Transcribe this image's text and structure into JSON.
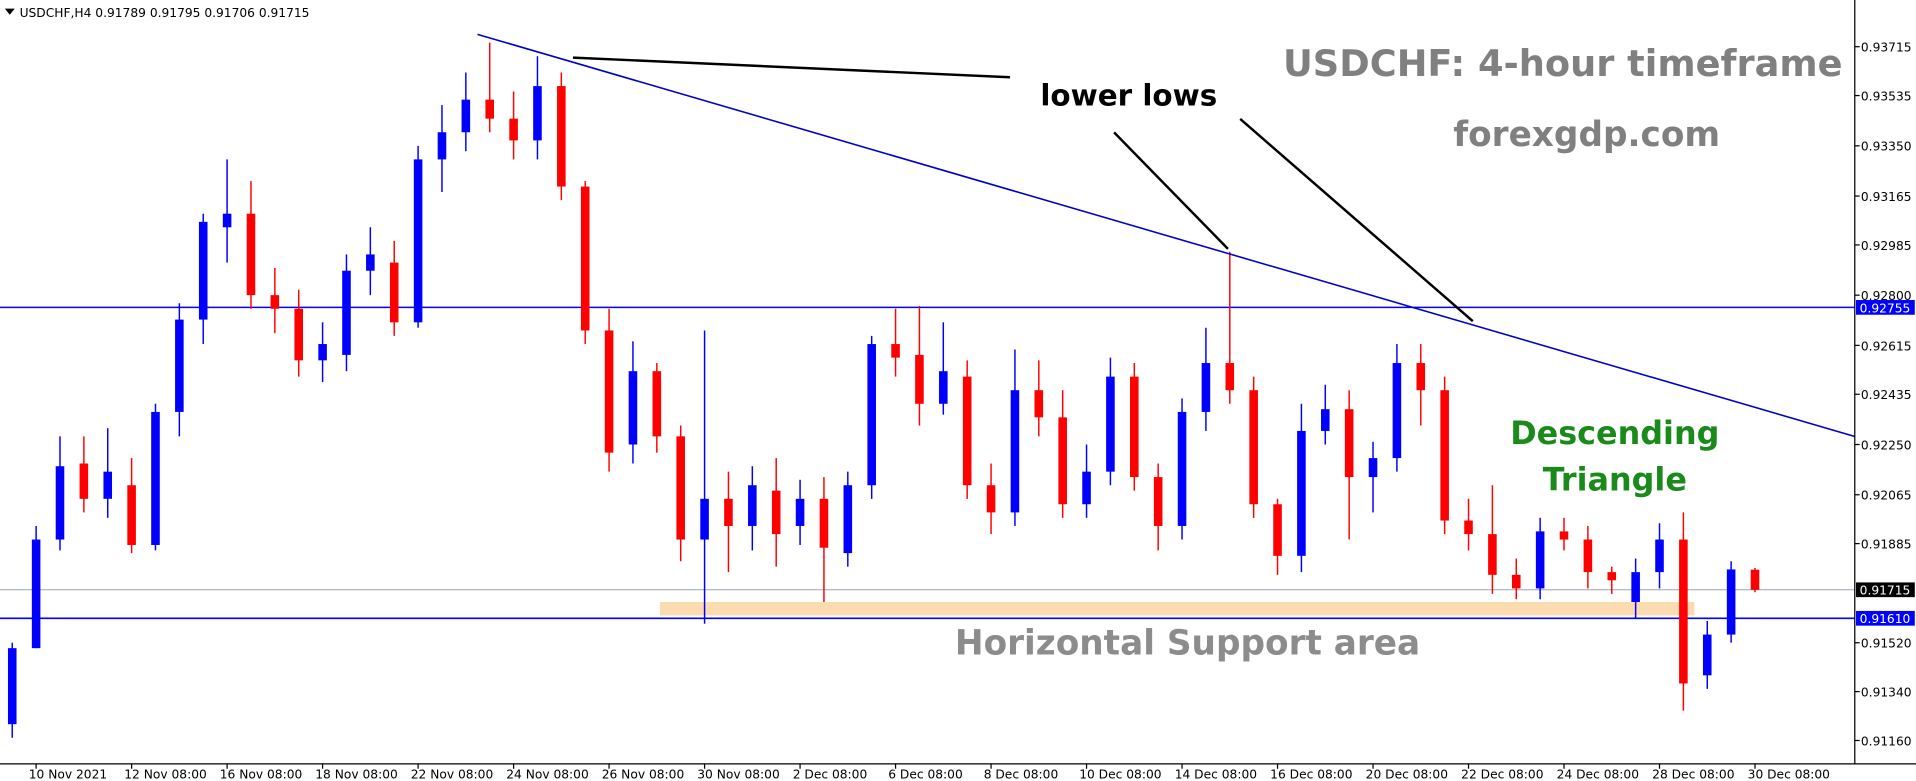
{
  "header": "USDCHF,H4  0.91789 0.91795 0.91706 0.91715",
  "chart_data": {
    "type": "candlestick",
    "up_color": "#0000ff",
    "down_color": "#ff0000",
    "categories": [
      null,
      "10 Nov 2021",
      null,
      null,
      null,
      "12 Nov 08:00",
      null,
      null,
      null,
      "16 Nov 08:00",
      null,
      null,
      null,
      "18 Nov 08:00",
      null,
      null,
      null,
      "22 Nov 08:00",
      null,
      null,
      null,
      "24 Nov 08:00",
      null,
      null,
      null,
      "26 Nov 08:00",
      null,
      null,
      null,
      "30 Nov 08:00",
      null,
      null,
      null,
      "2 Dec 08:00",
      null,
      null,
      null,
      "6 Dec 08:00",
      null,
      null,
      null,
      "8 Dec 08:00",
      null,
      null,
      null,
      "10 Dec 08:00",
      null,
      null,
      null,
      "14 Dec 08:00",
      null,
      null,
      null,
      "16 Dec 08:00",
      null,
      null,
      null,
      "20 Dec 08:00",
      null,
      null,
      null,
      "22 Dec 08:00",
      null,
      null,
      null,
      "24 Dec 08:00",
      null,
      null,
      null,
      "28 Dec 08:00",
      null,
      null,
      null,
      "30 Dec 08:00"
    ],
    "open": [
      0.9122,
      0.915,
      0.919,
      0.9218,
      0.9205,
      0.921,
      0.9188,
      0.9237,
      0.9271,
      0.9305,
      0.931,
      0.928,
      0.9275,
      0.9256,
      0.9258,
      0.9289,
      0.9292,
      0.927,
      0.933,
      0.934,
      0.9352,
      0.9345,
      0.9337,
      0.9357,
      0.932,
      0.9267,
      0.9225,
      0.9252,
      0.9228,
      0.919,
      0.9205,
      0.9195,
      0.9208,
      0.9195,
      0.9205,
      0.9185,
      0.921,
      0.9262,
      0.9258,
      0.924,
      0.925,
      0.921,
      0.92,
      0.9245,
      0.9235,
      0.9203,
      0.9215,
      0.925,
      0.9213,
      0.9195,
      0.9237,
      0.9255,
      0.9245,
      0.9203,
      0.9184,
      0.923,
      0.9238,
      0.9213,
      0.922,
      0.9255,
      0.9245,
      0.9197,
      0.9192,
      0.9177,
      0.9172,
      0.9193,
      0.919,
      0.9178,
      0.9167,
      0.9178,
      0.919,
      0.914,
      0.9155,
      0.91789
    ],
    "high": [
      0.9152,
      0.9195,
      0.9228,
      0.9228,
      0.9231,
      0.922,
      0.924,
      0.9277,
      0.931,
      0.933,
      0.9322,
      0.929,
      0.9282,
      0.927,
      0.9295,
      0.9305,
      0.93,
      0.9335,
      0.935,
      0.9362,
      0.9373,
      0.9355,
      0.9368,
      0.9362,
      0.9322,
      0.9275,
      0.9263,
      0.9255,
      0.9232,
      0.9267,
      0.9215,
      0.9217,
      0.922,
      0.9212,
      0.9213,
      0.9215,
      0.9265,
      0.9275,
      0.9276,
      0.927,
      0.9256,
      0.9218,
      0.926,
      0.9256,
      0.9245,
      0.9225,
      0.9257,
      0.9255,
      0.9218,
      0.9242,
      0.9268,
      0.9296,
      0.925,
      0.9205,
      0.924,
      0.9247,
      0.9245,
      0.9226,
      0.9262,
      0.9262,
      0.925,
      0.9205,
      0.921,
      0.9183,
      0.9198,
      0.9198,
      0.9195,
      0.918,
      0.9183,
      0.9196,
      0.92,
      0.916,
      0.9182,
      0.91795
    ],
    "low": [
      0.9117,
      0.915,
      0.9186,
      0.92,
      0.9198,
      0.9185,
      0.9186,
      0.9228,
      0.9262,
      0.9292,
      0.9275,
      0.9266,
      0.925,
      0.9248,
      0.9252,
      0.928,
      0.9265,
      0.9268,
      0.9318,
      0.9333,
      0.934,
      0.933,
      0.933,
      0.9315,
      0.9262,
      0.9215,
      0.9218,
      0.9222,
      0.9182,
      0.9159,
      0.9178,
      0.9186,
      0.918,
      0.9188,
      0.9167,
      0.918,
      0.9205,
      0.925,
      0.9232,
      0.9236,
      0.9205,
      0.9192,
      0.9195,
      0.9228,
      0.9198,
      0.9198,
      0.921,
      0.9208,
      0.9186,
      0.919,
      0.923,
      0.924,
      0.9198,
      0.9177,
      0.9178,
      0.9225,
      0.919,
      0.92,
      0.9215,
      0.9232,
      0.9192,
      0.9186,
      0.917,
      0.9168,
      0.9168,
      0.9186,
      0.9172,
      0.917,
      0.9161,
      0.9172,
      0.9127,
      0.9135,
      0.9152,
      0.91706
    ],
    "close": [
      0.915,
      0.919,
      0.9217,
      0.9205,
      0.9215,
      0.9188,
      0.9237,
      0.9271,
      0.9307,
      0.931,
      0.928,
      0.9275,
      0.9256,
      0.9262,
      0.9289,
      0.9295,
      0.927,
      0.933,
      0.934,
      0.9352,
      0.9345,
      0.9337,
      0.9357,
      0.932,
      0.9267,
      0.9222,
      0.9252,
      0.9228,
      0.919,
      0.9205,
      0.9195,
      0.921,
      0.9192,
      0.9205,
      0.9187,
      0.921,
      0.9262,
      0.9257,
      0.924,
      0.9252,
      0.921,
      0.92,
      0.9245,
      0.9235,
      0.9203,
      0.9215,
      0.925,
      0.9213,
      0.9195,
      0.9237,
      0.9255,
      0.9245,
      0.9203,
      0.9184,
      0.923,
      0.9238,
      0.9213,
      0.922,
      0.9255,
      0.9245,
      0.9197,
      0.9192,
      0.9177,
      0.9172,
      0.9193,
      0.919,
      0.9178,
      0.9175,
      0.9178,
      0.919,
      0.9137,
      0.9155,
      0.9179,
      0.91715
    ],
    "ylim": [
      0.91074,
      0.93887
    ],
    "yticks": [
      {
        "value": 0.93715,
        "label": "0.93715"
      },
      {
        "value": 0.93535,
        "label": "0.93535"
      },
      {
        "value": 0.9335,
        "label": "0.93350"
      },
      {
        "value": 0.93165,
        "label": "0.93165"
      },
      {
        "value": 0.92985,
        "label": "0.92985"
      },
      {
        "value": 0.928,
        "label": "0.92800"
      },
      {
        "value": 0.92615,
        "label": "0.92615"
      },
      {
        "value": 0.92435,
        "label": "0.92435"
      },
      {
        "value": 0.9225,
        "label": "0.92250"
      },
      {
        "value": 0.92065,
        "label": "0.92065"
      },
      {
        "value": 0.91885,
        "label": "0.91885"
      },
      {
        "value": 0.9152,
        "label": "0.91520"
      },
      {
        "value": 0.9134,
        "label": "0.91340"
      },
      {
        "value": 0.9116,
        "label": "0.91160"
      }
    ],
    "price_lines": [
      {
        "value": 0.92755,
        "label": "0.92755",
        "color": "#0000ff"
      },
      {
        "value": 0.9161,
        "label": "0.91610",
        "color": "#0000ff"
      },
      {
        "value": 0.91715,
        "label": "0.91715",
        "color": "#000000"
      }
    ],
    "annotations": {
      "title": "USDCHF: 4-hour timeframe",
      "site": "forexgdp.com",
      "lower_lows": "lower lows",
      "pattern_line1": "Descending",
      "pattern_line2": "Triangle",
      "support": "Horizontal Support area"
    }
  }
}
